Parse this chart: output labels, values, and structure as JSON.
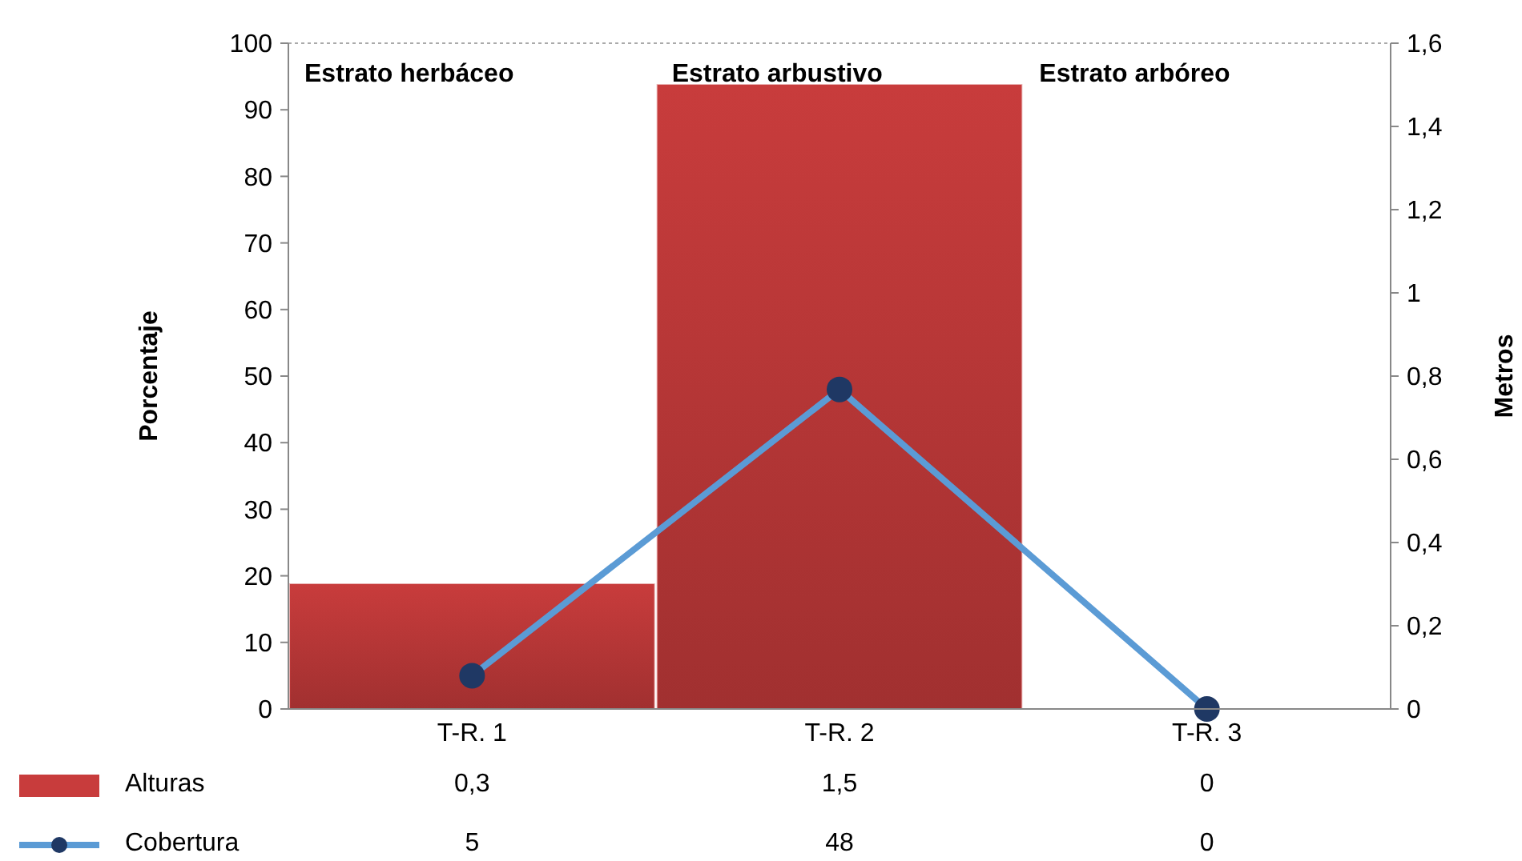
{
  "chart_data": {
    "type": "bar",
    "categories": [
      "T-R. 1",
      "T-R. 2",
      "T-R. 3"
    ],
    "series": [
      {
        "name": "Alturas",
        "axis": "y2",
        "color": "#c83c3c",
        "values": [
          0.3,
          1.5,
          0
        ],
        "value_labels": [
          "0,3",
          "1,5",
          "0"
        ]
      },
      {
        "name": "Cobertura",
        "type": "line",
        "color": "#5b9bd5",
        "values": [
          5,
          48,
          0
        ],
        "value_labels": [
          "5",
          "48",
          "0"
        ]
      }
    ],
    "ylabel": "Porcentaje",
    "y2label": "Metros",
    "ylim": [
      0,
      100
    ],
    "yticks": [
      0,
      10,
      20,
      30,
      40,
      50,
      60,
      70,
      80,
      90,
      100
    ],
    "y2lim": [
      0,
      1.6
    ],
    "y2ticks": [
      0,
      {
        "value": 0.2,
        "label": "0,2"
      },
      {
        "value": 0.4,
        "label": "0,4"
      },
      {
        "value": 0.6,
        "label": "0,6"
      },
      {
        "value": 0.8,
        "label": "0,8"
      },
      {
        "value": 1,
        "label": "1"
      },
      {
        "value": 1.2,
        "label": "1,2"
      },
      {
        "value": 1.4,
        "label": "1,4"
      },
      {
        "value": 1.6,
        "label": "1,6"
      }
    ],
    "annotations": [
      "Estrato herbáceo",
      "Estrato arbustivo",
      "Estrato arbóreo"
    ],
    "legend": "bottom",
    "marker": "circle",
    "line_style": "solid",
    "grid": false
  }
}
